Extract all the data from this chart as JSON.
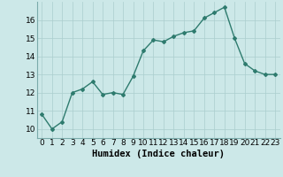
{
  "x": [
    0,
    1,
    2,
    3,
    4,
    5,
    6,
    7,
    8,
    9,
    10,
    11,
    12,
    13,
    14,
    15,
    16,
    17,
    18,
    19,
    20,
    21,
    22,
    23
  ],
  "y": [
    10.8,
    10.0,
    10.4,
    12.0,
    12.2,
    12.6,
    11.9,
    12.0,
    11.9,
    12.9,
    14.3,
    14.9,
    14.8,
    15.1,
    15.3,
    15.4,
    16.1,
    16.4,
    16.7,
    15.0,
    13.6,
    13.2,
    13.0,
    13.0
  ],
  "line_color": "#2e7b6e",
  "marker": "D",
  "marker_size": 2.0,
  "bg_color": "#cce8e8",
  "grid_color": "#aacece",
  "xlabel": "Humidex (Indice chaleur)",
  "ylim": [
    9.5,
    17.0
  ],
  "xlim": [
    -0.5,
    23.5
  ],
  "yticks": [
    10,
    11,
    12,
    13,
    14,
    15,
    16
  ],
  "xticks": [
    0,
    1,
    2,
    3,
    4,
    5,
    6,
    7,
    8,
    9,
    10,
    11,
    12,
    13,
    14,
    15,
    16,
    17,
    18,
    19,
    20,
    21,
    22,
    23
  ],
  "xlabel_fontsize": 7.5,
  "tick_fontsize": 6.5,
  "linewidth": 1.0
}
